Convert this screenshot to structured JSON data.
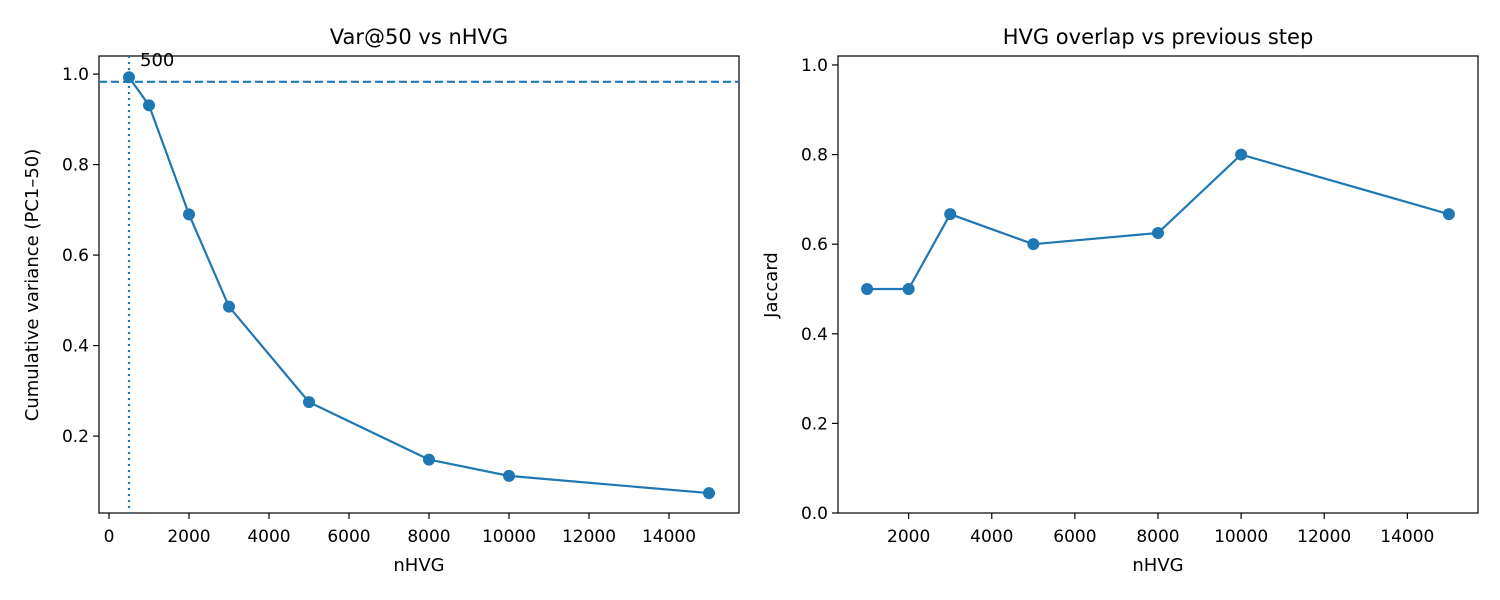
{
  "colors": {
    "series": "#1f77b4",
    "axis": "#000000",
    "background": "#ffffff"
  },
  "chart_data": [
    {
      "type": "line",
      "title": "Var@50 vs nHVG",
      "xlabel": "nHVG",
      "ylabel": "Cumulative variance (PC1–50)",
      "xlim": [
        -250,
        15750
      ],
      "ylim": [
        0.03,
        1.04
      ],
      "xticks": [
        0,
        2000,
        4000,
        6000,
        8000,
        10000,
        12000,
        14000
      ],
      "xtick_labels": [
        "0",
        "2000",
        "4000",
        "6000",
        "8000",
        "10000",
        "12000",
        "14000"
      ],
      "yticks": [
        0.2,
        0.4,
        0.6,
        0.8,
        1.0
      ],
      "ytick_labels": [
        "0.2",
        "0.4",
        "0.6",
        "0.8",
        "1.0"
      ],
      "grid": false,
      "x": [
        500,
        1000,
        2000,
        3000,
        5000,
        8000,
        10000,
        15000
      ],
      "y": [
        0.993,
        0.931,
        0.69,
        0.486,
        0.275,
        0.148,
        0.112,
        0.074
      ],
      "hline": {
        "y": 0.983,
        "style": "dashed"
      },
      "vline": {
        "x": 500,
        "style": "dotted"
      },
      "annotation": {
        "text": "500",
        "x": 500,
        "y": 0.983
      }
    },
    {
      "type": "line",
      "title": "HVG overlap vs previous step",
      "xlabel": "nHVG",
      "ylabel": "Jaccard",
      "xlim": [
        300,
        15700
      ],
      "ylim": [
        0.0,
        1.02
      ],
      "xticks": [
        2000,
        4000,
        6000,
        8000,
        10000,
        12000,
        14000
      ],
      "xtick_labels": [
        "2000",
        "4000",
        "6000",
        "8000",
        "10000",
        "12000",
        "14000"
      ],
      "yticks": [
        0.0,
        0.2,
        0.4,
        0.6,
        0.8,
        1.0
      ],
      "ytick_labels": [
        "0.0",
        "0.2",
        "0.4",
        "0.6",
        "0.8",
        "1.0"
      ],
      "grid": false,
      "x": [
        1000,
        2000,
        3000,
        5000,
        8000,
        10000,
        15000
      ],
      "y": [
        0.5,
        0.5,
        0.667,
        0.6,
        0.625,
        0.8,
        0.667
      ]
    }
  ]
}
